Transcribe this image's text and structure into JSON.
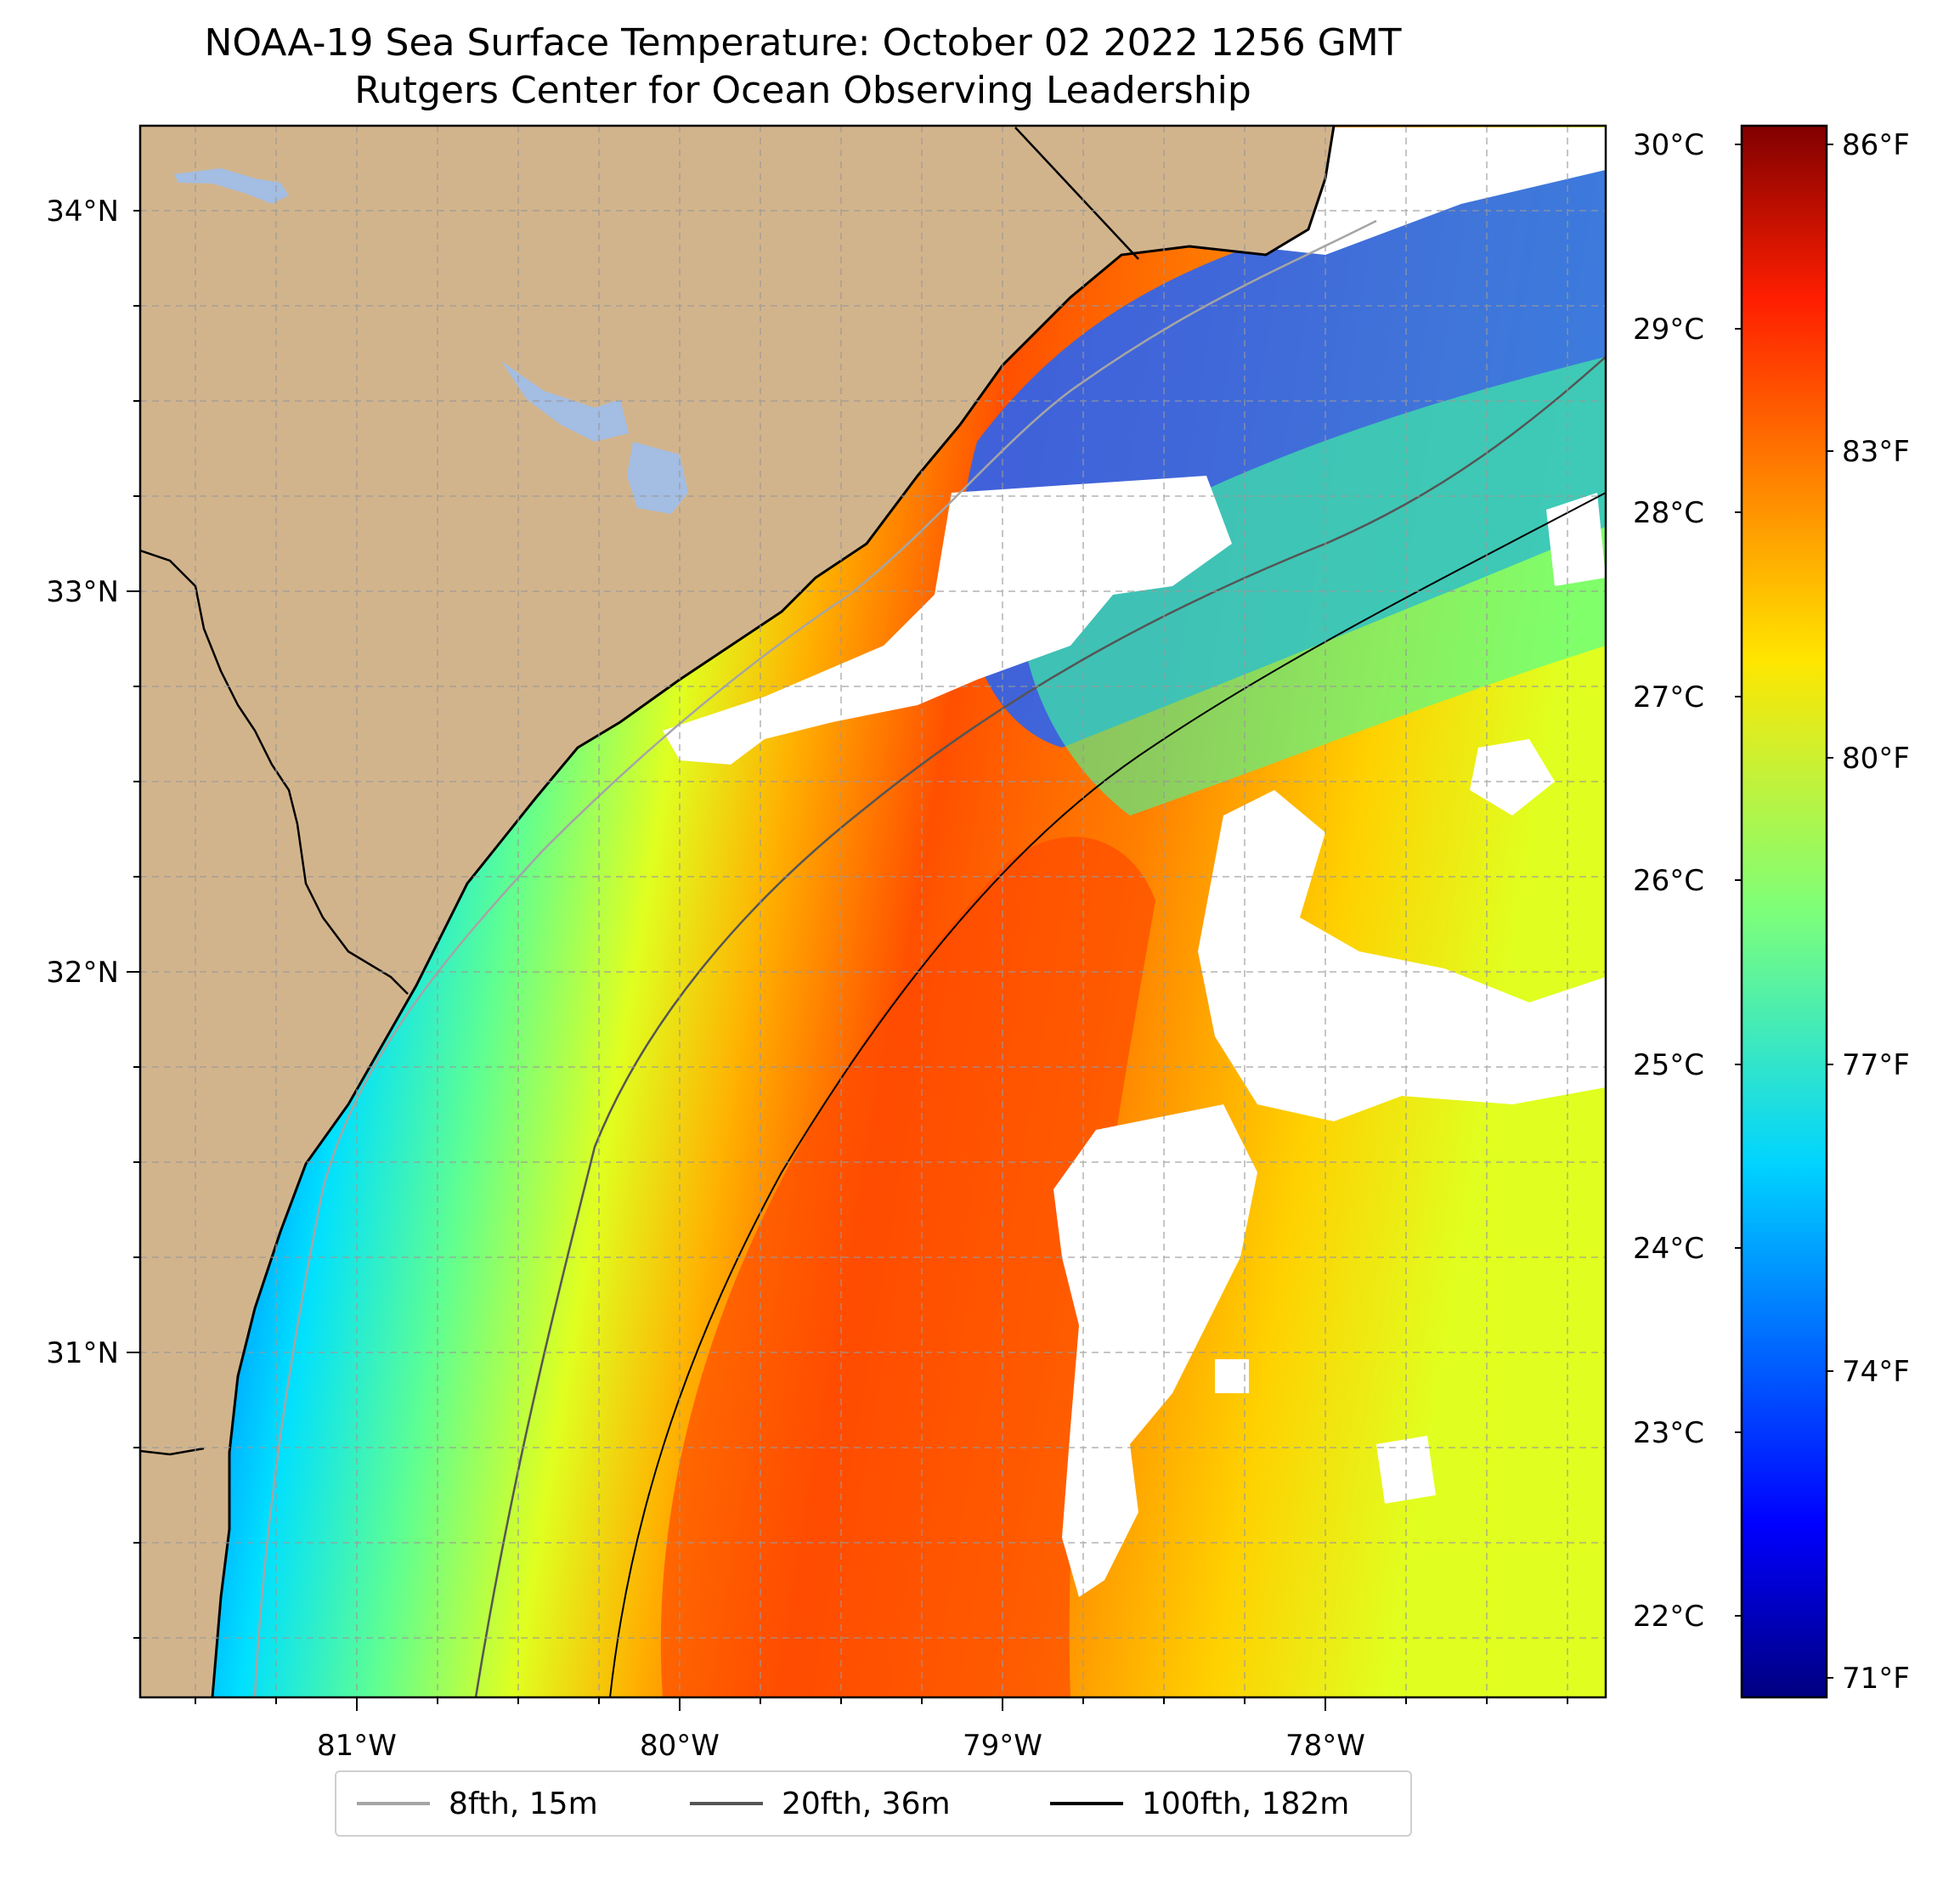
{
  "title": {
    "line1": "NOAA-19 Sea Surface Temperature: October 02 2022 1256 GMT",
    "line2": "Rutgers Center for Ocean Observing Leadership"
  },
  "map": {
    "lon_ticks": [
      "81°W",
      "80°W",
      "79°W",
      "78°W"
    ],
    "lat_ticks": [
      "34°N",
      "33°N",
      "32°N",
      "31°N"
    ],
    "land_color": "#d2b48c",
    "lake_color": "#a3bde3",
    "no_data_color": "#ffffff",
    "gridlines": "dashed-gray"
  },
  "colorbar": {
    "celsius_ticks": [
      "30°C",
      "29°C",
      "28°C",
      "27°C",
      "26°C",
      "25°C",
      "24°C",
      "23°C",
      "22°C"
    ],
    "fahrenheit_ticks": [
      "86°F",
      "83°F",
      "80°F",
      "77°F",
      "74°F",
      "71°F"
    ],
    "colormap": "jet"
  },
  "legend": {
    "items": [
      {
        "label": "8fth, 15m",
        "color": "#a5a5a5"
      },
      {
        "label": "20fth, 36m",
        "color": "#555555"
      },
      {
        "label": "100fth, 182m",
        "color": "#000000"
      }
    ]
  }
}
